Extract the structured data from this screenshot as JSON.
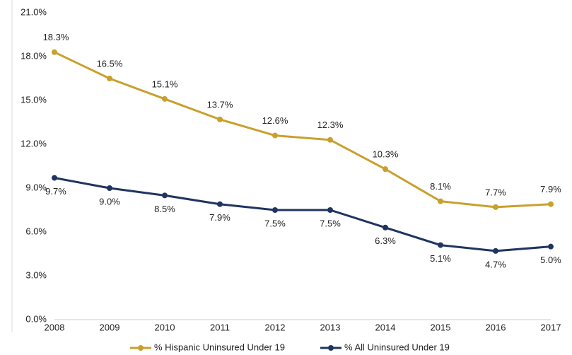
{
  "chart_data": {
    "type": "line",
    "categories": [
      "2008",
      "2009",
      "2010",
      "2011",
      "2012",
      "2013",
      "2014",
      "2015",
      "2016",
      "2017"
    ],
    "series": [
      {
        "name": "% Hispanic Uninsured Under 19",
        "color": "#c9a02c",
        "values": [
          18.3,
          16.5,
          15.1,
          13.7,
          12.6,
          12.3,
          10.3,
          8.1,
          7.7,
          7.9
        ],
        "value_labels": [
          "18.3%",
          "16.5%",
          "15.1%",
          "13.7%",
          "12.6%",
          "12.3%",
          "10.3%",
          "8.1%",
          "7.7%",
          "7.9%"
        ]
      },
      {
        "name": "% All Uninsured Under 19",
        "color": "#1f3560",
        "values": [
          9.7,
          9.0,
          8.5,
          7.9,
          7.5,
          7.5,
          6.3,
          5.1,
          4.7,
          5.0
        ],
        "value_labels": [
          "9.7%",
          "9.0%",
          "8.5%",
          "7.9%",
          "7.5%",
          "7.5%",
          "6.3%",
          "5.1%",
          "4.7%",
          "5.0%"
        ]
      }
    ],
    "ylim": [
      0,
      21
    ],
    "yticks": [
      {
        "value": 0,
        "label": "0.0%"
      },
      {
        "value": 3,
        "label": "3.0%"
      },
      {
        "value": 6,
        "label": "6.0%"
      },
      {
        "value": 9,
        "label": "9.0%"
      },
      {
        "value": 12,
        "label": "12.0%"
      },
      {
        "value": 15,
        "label": "15.0%"
      },
      {
        "value": 18,
        "label": "18.0%"
      },
      {
        "value": 21,
        "label": "21.0%"
      }
    ],
    "legend": "bottom"
  }
}
